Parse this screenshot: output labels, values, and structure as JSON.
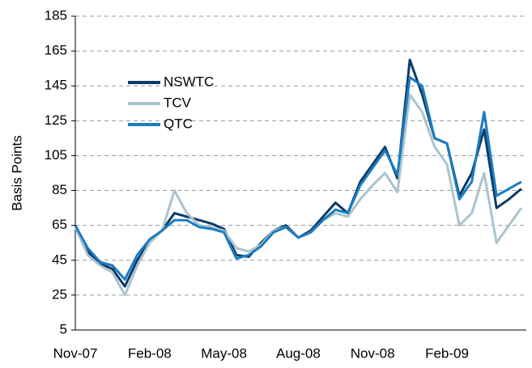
{
  "chart_data": {
    "type": "line",
    "y_label": "Basis Points",
    "categories": [
      "Nov-07",
      null,
      null,
      null,
      null,
      null,
      "Feb-08",
      null,
      null,
      null,
      null,
      null,
      "May-08",
      null,
      null,
      null,
      null,
      null,
      "Aug-08",
      null,
      null,
      null,
      null,
      null,
      "Nov-08",
      null,
      null,
      null,
      null,
      null,
      "Feb-09",
      null,
      null,
      null,
      null,
      null,
      null
    ],
    "series": [
      {
        "name": "NSWTC",
        "color": "#0d3a66",
        "values": [
          65,
          50,
          43,
          40,
          30,
          45,
          56,
          62,
          72,
          70,
          68,
          66,
          63,
          48,
          47,
          55,
          62,
          65,
          58,
          62,
          70,
          78,
          72,
          90,
          100,
          110,
          92,
          160,
          140,
          115,
          112,
          82,
          95,
          120,
          75,
          80,
          86
        ]
      },
      {
        "name": "TCV",
        "color": "#a9c4cd",
        "values": [
          64,
          48,
          42,
          38,
          25,
          42,
          55,
          62,
          85,
          72,
          65,
          64,
          62,
          52,
          50,
          54,
          62,
          64,
          58,
          61,
          68,
          72,
          70,
          80,
          88,
          95,
          84,
          140,
          130,
          110,
          100,
          65,
          72,
          95,
          55,
          65,
          75
        ]
      },
      {
        "name": "QTC",
        "color": "#1a7cc1",
        "values": [
          65,
          52,
          44,
          42,
          34,
          48,
          57,
          62,
          68,
          68,
          64,
          63,
          61,
          46,
          48,
          53,
          61,
          64,
          58,
          61,
          68,
          74,
          72,
          88,
          98,
          108,
          94,
          150,
          145,
          115,
          112,
          80,
          90,
          130,
          82,
          86,
          90
        ]
      }
    ],
    "ylim": [
      5,
      185
    ],
    "yticks": [
      5,
      25,
      45,
      65,
      85,
      105,
      125,
      145,
      165,
      185
    ],
    "grid": true,
    "legend": "upper left"
  }
}
